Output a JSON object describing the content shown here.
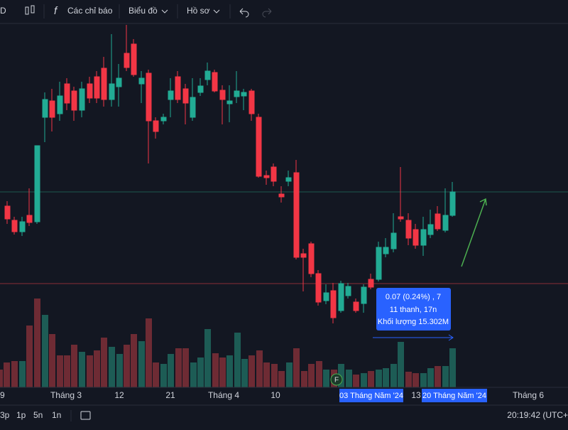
{
  "toolbar": {
    "symbol": "D",
    "indicators": "Các chỉ báo",
    "chart": "Biểu đồ",
    "profile": "Hồ sơ"
  },
  "time_axis": {
    "labels": [
      "9",
      "Tháng 3",
      "12",
      "21",
      "Tháng 4",
      "10",
      "13",
      "Tháng 6"
    ],
    "highlights": [
      "03 Tháng Năm '24",
      "20 Tháng Năm '24"
    ]
  },
  "marker": "F",
  "tooltip": {
    "change": "0.07 (0.24%) , 7",
    "bars": "11 thanh, 17n",
    "volume": "Khối lượng 15.302M"
  },
  "bottom_bar": {
    "intervals": [
      "3p",
      "1p",
      "5n",
      "1n"
    ],
    "clock": "20:19:42 (UTC+"
  }
}
